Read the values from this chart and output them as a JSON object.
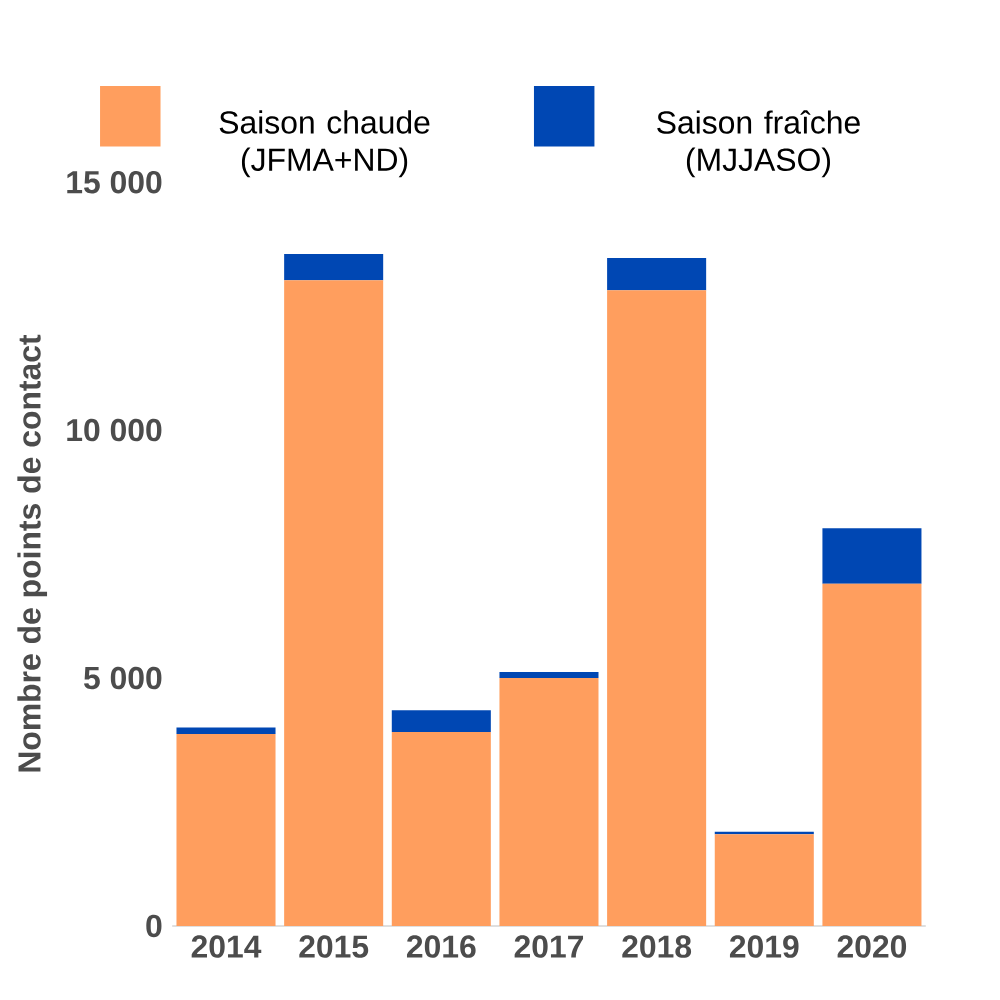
{
  "chart_data": {
    "type": "bar",
    "stacked": true,
    "categories": [
      "2014",
      "2015",
      "2016",
      "2017",
      "2018",
      "2019",
      "2020"
    ],
    "series": [
      {
        "name": "Saison chaude (JFMA+ND)",
        "color": "#ff9e5e",
        "values": [
          3870,
          13020,
          3910,
          5000,
          12820,
          1850,
          6900
        ]
      },
      {
        "name": "Saison fraîche (MJJASO)",
        "color": "#0047b3",
        "values": [
          130,
          530,
          440,
          120,
          650,
          50,
          1120
        ]
      }
    ],
    "ylabel": "Nombre de points de contact",
    "ylim": [
      0,
      15000
    ],
    "yticks": [
      {
        "value": 0,
        "label": "0"
      },
      {
        "value": 5000,
        "label": "5 000"
      },
      {
        "value": 10000,
        "label": "10 000"
      },
      {
        "value": 15000,
        "label": "15 000"
      }
    ],
    "legend": "top"
  }
}
